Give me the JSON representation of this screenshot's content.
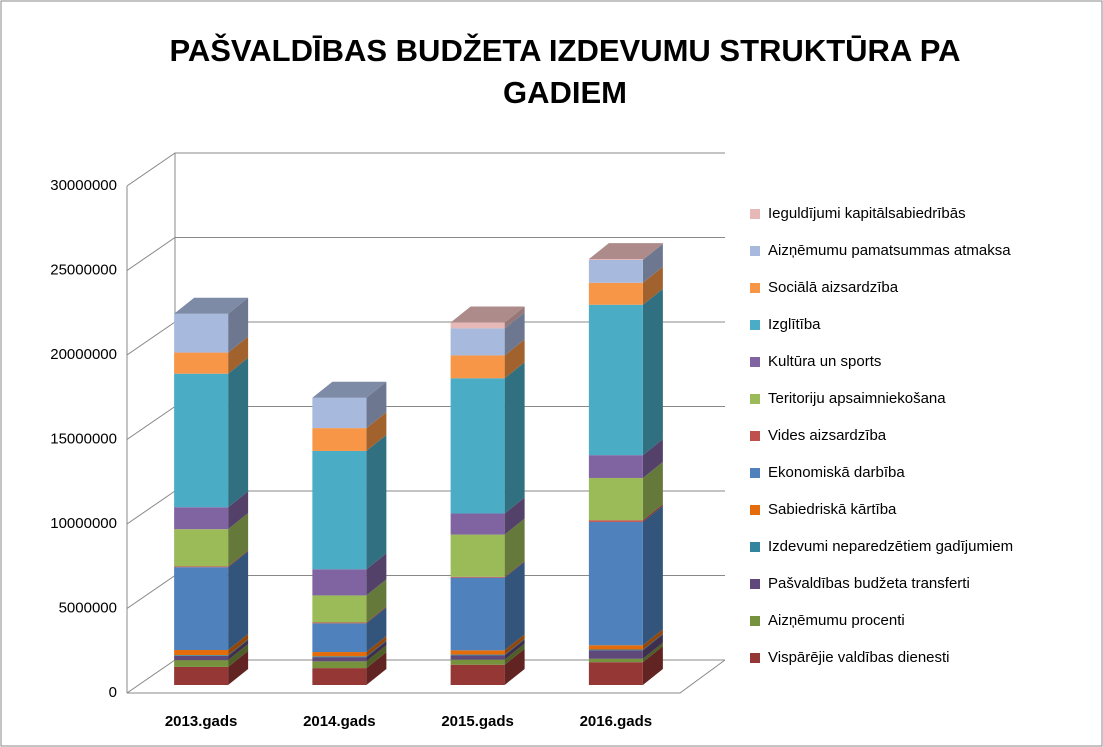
{
  "chart_data": {
    "type": "bar3d_stacked",
    "title": "PAŠVALDĪBAS BUDŽETA IZDEVUMU STRUKTŪRA PA GADIEM",
    "categories": [
      "2013.gads",
      "2014.gads",
      "2015.gads",
      "2016.gads"
    ],
    "ylim": [
      0,
      30000000
    ],
    "yticks": [
      0,
      5000000,
      10000000,
      15000000,
      20000000,
      25000000,
      30000000
    ],
    "grid": true,
    "legend": "right",
    "series": [
      {
        "name": "Vispārējie valdības dienesti",
        "color": "#953735",
        "values": [
          1070000,
          1000000,
          1200000,
          1350000
        ]
      },
      {
        "name": "Aizņēmumu procenti",
        "color": "#76923c",
        "values": [
          400000,
          400000,
          300000,
          200000
        ]
      },
      {
        "name": "Pašvaldības budžeta transferti",
        "color": "#5f497a",
        "values": [
          250000,
          250000,
          250000,
          500000
        ]
      },
      {
        "name": "Izdevumi neparedzētiem gadījumiem",
        "color": "#31859c",
        "values": [
          50000,
          50000,
          50000,
          50000
        ]
      },
      {
        "name": "Sabiedriskā kārtība",
        "color": "#e46c0a",
        "values": [
          300000,
          250000,
          250000,
          250000
        ]
      },
      {
        "name": "Ekonomiskā darbība",
        "color": "#4f81bd",
        "values": [
          4900000,
          1700000,
          4300000,
          7300000
        ]
      },
      {
        "name": "Vides aizsardzība",
        "color": "#c0504d",
        "values": [
          50000,
          50000,
          50000,
          100000
        ]
      },
      {
        "name": "Teritoriju apsaimniekošana",
        "color": "#9bbb59",
        "values": [
          2200000,
          1600000,
          2500000,
          2500000
        ]
      },
      {
        "name": "Kultūra un sports",
        "color": "#8064a2",
        "values": [
          1300000,
          1550000,
          1250000,
          1350000
        ]
      },
      {
        "name": "Izglītība",
        "color": "#4bacc6",
        "values": [
          7900000,
          7000000,
          8000000,
          8900000
        ]
      },
      {
        "name": "Sociālā aizsardzība",
        "color": "#f79646",
        "values": [
          1250000,
          1350000,
          1350000,
          1300000
        ]
      },
      {
        "name": "Aizņēmumu pamatsummas atmaksa",
        "color": "#a7b9dd",
        "values": [
          2300000,
          1800000,
          1600000,
          1350000
        ]
      },
      {
        "name": "Ieguldījumi kapitālsabiedrībās",
        "color": "#e6b9b8",
        "values": [
          0,
          0,
          350000,
          50000
        ]
      }
    ]
  }
}
